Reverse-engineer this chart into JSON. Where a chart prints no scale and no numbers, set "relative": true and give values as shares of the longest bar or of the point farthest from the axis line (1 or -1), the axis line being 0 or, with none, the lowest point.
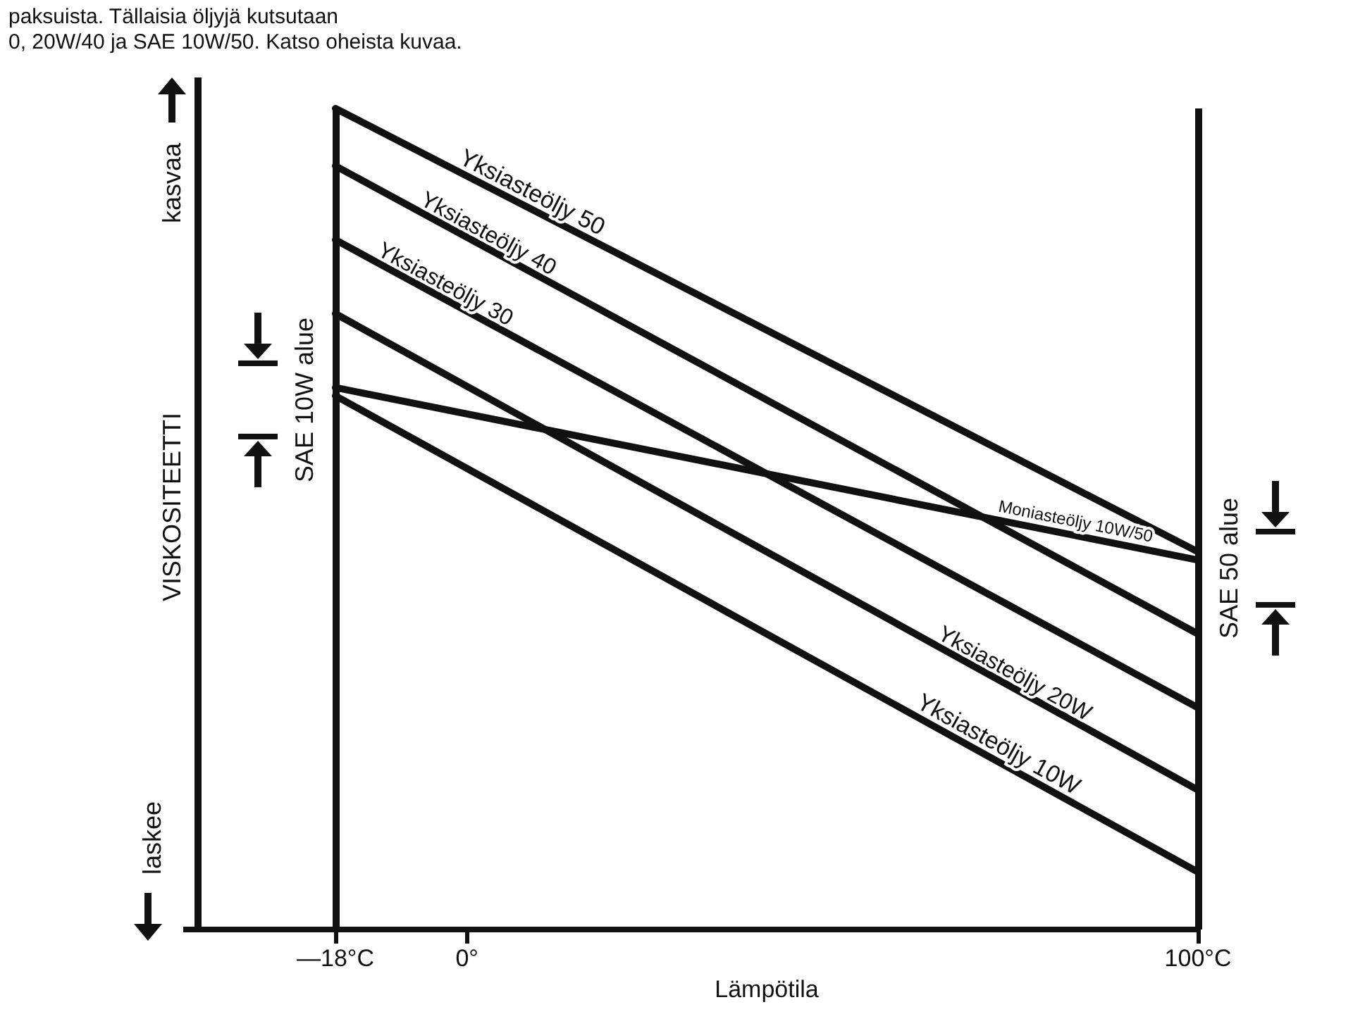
{
  "chart_data": {
    "type": "line",
    "relative": true,
    "xlabel": "Lämpötila",
    "ylabel": "VISKOSITEETTI",
    "x": [
      -18,
      100
    ],
    "xlim": [
      -18,
      100
    ],
    "xticks": [
      {
        "value": -18,
        "label": "—18°C"
      },
      {
        "value": 0,
        "label": "0°"
      },
      {
        "value": 100,
        "label": "100°C"
      }
    ],
    "series": [
      {
        "name": "Yksiasteöljy 50",
        "color": "#111111",
        "values": [
          1,
          0.46
        ]
      },
      {
        "name": "Yksiasteöljy 40",
        "color": "#111111",
        "values": [
          0.93,
          0.36
        ]
      },
      {
        "name": "Yksiasteöljy 30",
        "color": "#111111",
        "values": [
          0.84,
          0.27
        ]
      },
      {
        "name": "Moniasteöljy 10W/50",
        "color": "#111111",
        "values": [
          0.66,
          0.45
        ]
      },
      {
        "name": "Yksiasteöljy 20W",
        "color": "#111111",
        "values": [
          0.75,
          0.17
        ]
      },
      {
        "name": "Yksiasteöljy 10W",
        "color": "#111111",
        "values": [
          0.65,
          0.07
        ]
      }
    ],
    "annotations": [
      "paksuista. Tällaisia öljyjä kutsutaan",
      "0, 20W/40 ja SAE 10W/50. Katso oheista kuvaa.",
      "kasvaa",
      "laskee",
      "SAE 10W alue",
      "SAE 50 alue"
    ],
    "ref_lines": [
      {
        "axis": "x",
        "value": -18,
        "color": "#111111"
      },
      {
        "axis": "x",
        "value": 100,
        "color": "#111111"
      }
    ]
  }
}
